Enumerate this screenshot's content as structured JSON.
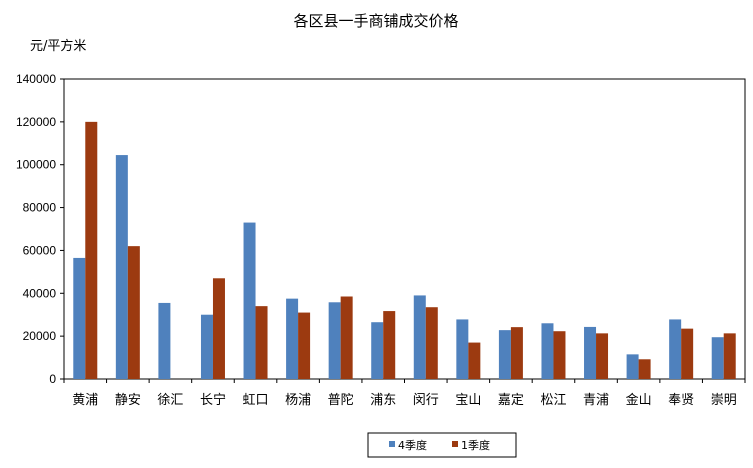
{
  "chart_data": {
    "type": "bar",
    "title": "各区县一手商铺成交价格",
    "ylabel": "元/平方米",
    "xlabel": "",
    "ylim": [
      0,
      140000
    ],
    "yticks": [
      "0",
      "20000",
      "40000",
      "60000",
      "80000",
      "100000",
      "120000",
      "140000"
    ],
    "grid": false,
    "legend_position": "bottom",
    "categories": [
      "黄浦",
      "静安",
      "徐汇",
      "长宁",
      "虹口",
      "杨浦",
      "普陀",
      "浦东",
      "闵行",
      "宝山",
      "嘉定",
      "松江",
      "青浦",
      "金山",
      "奉贤",
      "崇明"
    ],
    "series": [
      {
        "name": "4季度",
        "color": "#4f81bd",
        "values": [
          56500,
          104500,
          35500,
          30000,
          73000,
          37500,
          35800,
          26500,
          39000,
          27800,
          22800,
          26000,
          24300,
          11500,
          27800,
          19500
        ]
      },
      {
        "name": "1季度",
        "color": "#9c3a10",
        "values": [
          120000,
          62000,
          null,
          47000,
          34000,
          31000,
          38500,
          31700,
          33500,
          17000,
          24200,
          22300,
          21300,
          9200,
          23500,
          21300
        ]
      }
    ]
  }
}
